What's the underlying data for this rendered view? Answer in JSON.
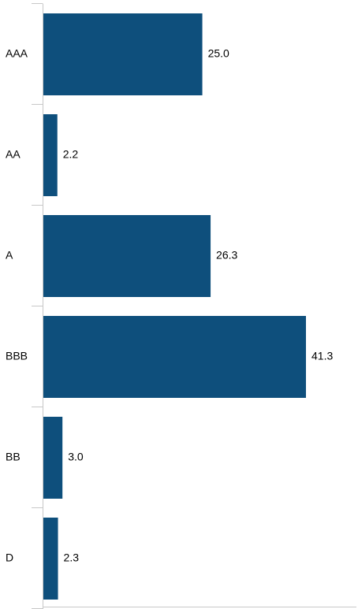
{
  "chart_data": {
    "type": "bar",
    "orientation": "horizontal",
    "categories": [
      "AAA",
      "AA",
      "A",
      "BBB",
      "BB",
      "D"
    ],
    "values": [
      25.0,
      2.2,
      26.3,
      41.3,
      3.0,
      2.3
    ],
    "value_labels": [
      "25.0",
      "2.2",
      "26.3",
      "41.3",
      "3.0",
      "2.3"
    ],
    "title": "",
    "xlabel": "",
    "ylabel": "",
    "xlim": [
      0,
      50
    ],
    "grid": false,
    "legend": "none",
    "bar_color": "#0e4f7c",
    "axis_color": "#c8c8c8"
  }
}
